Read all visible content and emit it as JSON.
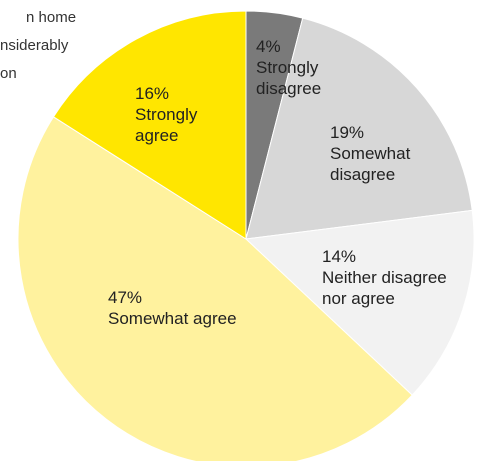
{
  "title_lines": [
    "n home",
    "nsiderably",
    "on"
  ],
  "chart_data": {
    "type": "pie",
    "start_angle_deg": 0,
    "direction": "clockwise",
    "slices": [
      {
        "pct": 4,
        "value_label": "4%",
        "label_lines": [
          "Strongly",
          "disagree"
        ],
        "color": "#7a7a7a"
      },
      {
        "pct": 19,
        "value_label": "19%",
        "label_lines": [
          "Somewhat",
          "disagree"
        ],
        "color": "#d7d7d7"
      },
      {
        "pct": 14,
        "value_label": "14%",
        "label_lines": [
          "Neither disagree",
          "nor agree"
        ],
        "color": "#f2f2f2"
      },
      {
        "pct": 47,
        "value_label": "47%",
        "label_lines": [
          "Somewhat agree"
        ],
        "color": "#fff29e"
      },
      {
        "pct": 16,
        "value_label": "16%",
        "label_lines": [
          "Strongly",
          "agree"
        ],
        "color": "#ffe600"
      }
    ]
  }
}
